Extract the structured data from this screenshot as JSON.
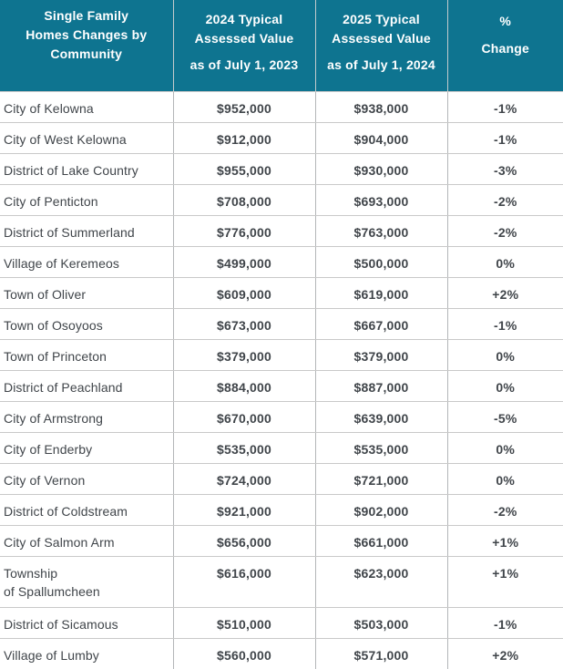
{
  "colors": {
    "header_bg": "#0e7490",
    "header_text": "#ffffff",
    "body_text": "#40454a",
    "row_divider": "#c9c9c9",
    "column_divider": "#b3b6b8"
  },
  "table": {
    "header": {
      "community": "Single Family\nHomes Changes by\nCommunity",
      "col2024_title": "2024 Typical\nAssessed Value",
      "col2024_sub": "as of July 1, 2023",
      "col2025_title": "2025 Typical\nAssessed Value",
      "col2025_sub": "as of July 1, 2024",
      "pct_line1": "%",
      "pct_line2": "Change"
    },
    "rows": [
      {
        "community": "City of Kelowna",
        "value_2024": "$952,000",
        "value_2025": "$938,000",
        "pct_change": "-1%"
      },
      {
        "community": "City of West Kelowna",
        "value_2024": "$912,000",
        "value_2025": "$904,000",
        "pct_change": "-1%"
      },
      {
        "community": "District of Lake Country",
        "value_2024": "$955,000",
        "value_2025": "$930,000",
        "pct_change": "-3%"
      },
      {
        "community": "City of Penticton",
        "value_2024": "$708,000",
        "value_2025": "$693,000",
        "pct_change": "-2%"
      },
      {
        "community": "District of Summerland",
        "value_2024": "$776,000",
        "value_2025": "$763,000",
        "pct_change": "-2%"
      },
      {
        "community": "Village of Keremeos",
        "value_2024": "$499,000",
        "value_2025": "$500,000",
        "pct_change": "0%"
      },
      {
        "community": "Town of Oliver",
        "value_2024": "$609,000",
        "value_2025": "$619,000",
        "pct_change": "+2%"
      },
      {
        "community": "Town of Osoyoos",
        "value_2024": "$673,000",
        "value_2025": "$667,000",
        "pct_change": "-1%"
      },
      {
        "community": "Town of Princeton",
        "value_2024": "$379,000",
        "value_2025": "$379,000",
        "pct_change": "0%"
      },
      {
        "community": "District of Peachland",
        "value_2024": "$884,000",
        "value_2025": "$887,000",
        "pct_change": "0%"
      },
      {
        "community": "City of Armstrong",
        "value_2024": "$670,000",
        "value_2025": "$639,000",
        "pct_change": "-5%"
      },
      {
        "community": "City of Enderby",
        "value_2024": "$535,000",
        "value_2025": "$535,000",
        "pct_change": "0%"
      },
      {
        "community": "City of Vernon",
        "value_2024": "$724,000",
        "value_2025": "$721,000",
        "pct_change": "0%"
      },
      {
        "community": "District of Coldstream",
        "value_2024": "$921,000",
        "value_2025": "$902,000",
        "pct_change": "-2%"
      },
      {
        "community": "City of Salmon Arm",
        "value_2024": "$656,000",
        "value_2025": "$661,000",
        "pct_change": "+1%"
      },
      {
        "community": "Township\nof Spallumcheen",
        "value_2024": "$616,000",
        "value_2025": "$623,000",
        "pct_change": "+1%"
      },
      {
        "community": "District of Sicamous",
        "value_2024": "$510,000",
        "value_2025": "$503,000",
        "pct_change": "-1%"
      },
      {
        "community": "Village of Lumby",
        "value_2024": "$560,000",
        "value_2025": "$571,000",
        "pct_change": "+2%"
      }
    ]
  },
  "chart_data": {
    "type": "table",
    "title": "Single Family Homes Changes by Community",
    "columns": [
      "Single Family Homes Changes by Community",
      "2024 Typical Assessed Value as of July 1, 2023",
      "2025 Typical Assessed Value as of July 1, 2024",
      "% Change"
    ],
    "rows": [
      [
        "City of Kelowna",
        952000,
        938000,
        "-1%"
      ],
      [
        "City of West Kelowna",
        912000,
        904000,
        "-1%"
      ],
      [
        "District of Lake Country",
        955000,
        930000,
        "-3%"
      ],
      [
        "City of Penticton",
        708000,
        693000,
        "-2%"
      ],
      [
        "District of Summerland",
        776000,
        763000,
        "-2%"
      ],
      [
        "Village of Keremeos",
        499000,
        500000,
        "0%"
      ],
      [
        "Town of Oliver",
        609000,
        619000,
        "+2%"
      ],
      [
        "Town of Osoyoos",
        673000,
        667000,
        "-1%"
      ],
      [
        "Town of Princeton",
        379000,
        379000,
        "0%"
      ],
      [
        "District of Peachland",
        884000,
        887000,
        "0%"
      ],
      [
        "City of Armstrong",
        670000,
        639000,
        "-5%"
      ],
      [
        "City of Enderby",
        535000,
        535000,
        "0%"
      ],
      [
        "City of Vernon",
        724000,
        721000,
        "0%"
      ],
      [
        "District of Coldstream",
        921000,
        902000,
        "-2%"
      ],
      [
        "City of Salmon Arm",
        656000,
        661000,
        "+1%"
      ],
      [
        "Township of Spallumcheen",
        616000,
        623000,
        "+1%"
      ],
      [
        "District of Sicamous",
        510000,
        503000,
        "-1%"
      ],
      [
        "Village of Lumby",
        560000,
        571000,
        "+2%"
      ]
    ]
  }
}
